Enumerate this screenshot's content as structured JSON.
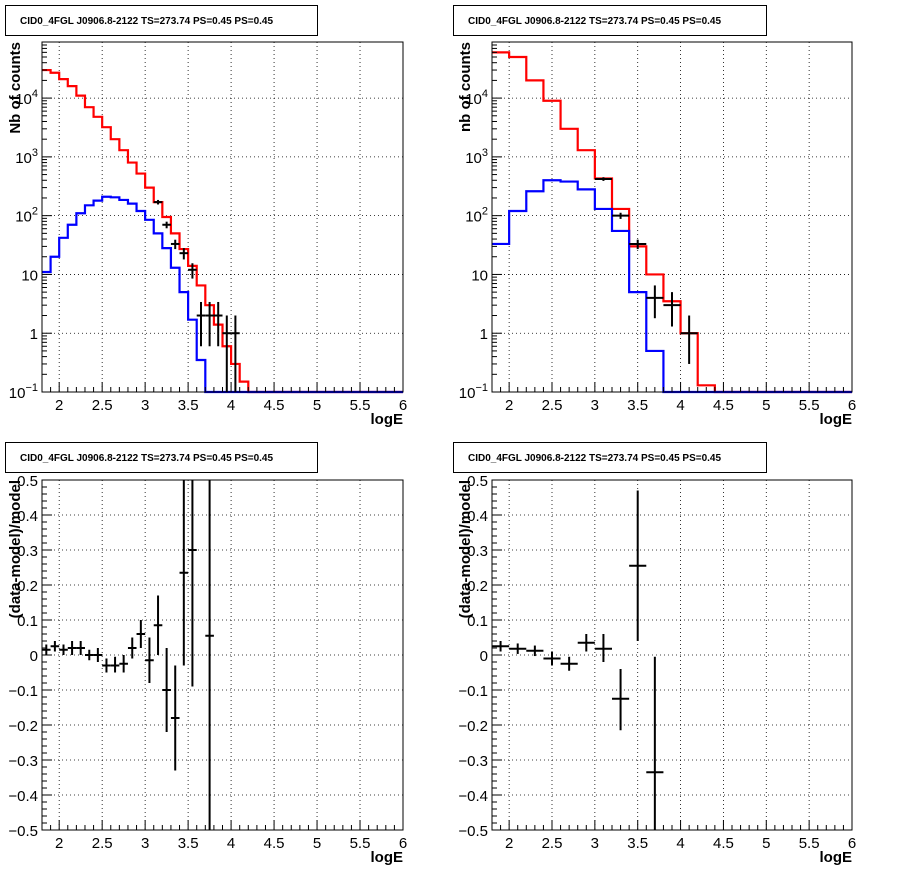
{
  "chart_data": [
    {
      "type": "histogram",
      "title": "CID0_4FGL J0906.8-2122 TS=273.74 PS=0.45 PS=0.45",
      "xlabel": "logE",
      "ylabel": "Nb of counts",
      "xlim": [
        1.8,
        6.0
      ],
      "ylim": [
        0.1,
        90000
      ],
      "yscale": "log",
      "grid": true,
      "xticks": [
        "2",
        "2.5",
        "3",
        "3.5",
        "4",
        "4.5",
        "5",
        "5.5",
        "6"
      ],
      "yticks": [
        {
          "value": 0.1,
          "label": "10",
          "exp": "−1"
        },
        {
          "value": 1,
          "label": "1"
        },
        {
          "value": 10,
          "label": "10"
        },
        {
          "value": 100,
          "label": "10",
          "exp": "2"
        },
        {
          "value": 1000,
          "label": "10",
          "exp": "3"
        },
        {
          "value": 10000,
          "label": "10",
          "exp": "4"
        }
      ],
      "series": [
        {
          "color": "#ff0000",
          "edges": [
            1.8,
            1.9,
            2.0,
            2.1,
            2.2,
            2.3,
            2.4,
            2.5,
            2.6,
            2.7,
            2.8,
            2.9,
            3.0,
            3.1,
            3.2,
            3.3,
            3.4,
            3.5,
            3.6,
            3.7,
            3.8,
            3.9,
            4.0,
            4.1,
            4.2,
            4.3,
            4.4,
            4.5,
            4.6,
            4.7,
            4.8,
            4.9,
            5.0,
            5.1,
            5.2,
            5.3,
            5.4,
            5.5,
            5.6,
            5.7,
            5.8,
            5.9,
            6.0
          ],
          "values": [
            30000,
            27000,
            21000,
            16000,
            11000,
            7000,
            4800,
            3200,
            2000,
            1300,
            800,
            520,
            300,
            170,
            95,
            50,
            27,
            14,
            6.5,
            3,
            1.4,
            0.6,
            0.3,
            0.15,
            0.1,
            0.1,
            0.1,
            0.1,
            0.1,
            0.1,
            0.1,
            0.1,
            0.1,
            0.1,
            0.1,
            0.1,
            0.1,
            0.1,
            0.1,
            0.1,
            0.1,
            0.1
          ]
        },
        {
          "color": "#0000ff",
          "edges": [
            1.8,
            1.9,
            2.0,
            2.1,
            2.2,
            2.3,
            2.4,
            2.5,
            2.6,
            2.7,
            2.8,
            2.9,
            3.0,
            3.1,
            3.2,
            3.3,
            3.4,
            3.5,
            3.6,
            3.7,
            3.8,
            3.9,
            4.0,
            4.1,
            4.2,
            4.3,
            4.4,
            4.5,
            4.6,
            4.7,
            4.8,
            4.9,
            5.0,
            5.1,
            5.2,
            5.3,
            5.4,
            5.5,
            5.6,
            5.7,
            5.8,
            5.9,
            6.0
          ],
          "values": [
            11,
            20,
            42,
            70,
            110,
            150,
            180,
            210,
            205,
            185,
            160,
            120,
            85,
            50,
            28,
            13,
            5,
            1.7,
            0.35,
            0.1,
            0.1,
            0.1,
            0.1,
            0.1,
            0.1,
            0.1,
            0.1,
            0.1,
            0.1,
            0.1,
            0.1,
            0.1,
            0.1,
            0.1,
            0.1,
            0.1,
            0.1,
            0.1,
            0.1,
            0.1,
            0.1,
            0.1
          ]
        }
      ],
      "points": [
        {
          "x": 3.15,
          "xerr": 0.05,
          "y": 170,
          "ylo": 155,
          "yhi": 185
        },
        {
          "x": 3.25,
          "xerr": 0.05,
          "y": 70,
          "ylo": 61,
          "yhi": 79
        },
        {
          "x": 3.35,
          "xerr": 0.05,
          "y": 33,
          "ylo": 27,
          "yhi": 39
        },
        {
          "x": 3.45,
          "xerr": 0.05,
          "y": 23,
          "ylo": 18,
          "yhi": 28
        },
        {
          "x": 3.55,
          "xerr": 0.05,
          "y": 12,
          "ylo": 8.5,
          "yhi": 15.5
        },
        {
          "x": 3.65,
          "xerr": 0.05,
          "y": 2,
          "ylo": 0.6,
          "yhi": 3.4
        },
        {
          "x": 3.75,
          "xerr": 0.05,
          "y": 2,
          "ylo": 0.6,
          "yhi": 3.4
        },
        {
          "x": 3.85,
          "xerr": 0.05,
          "y": 2,
          "ylo": 0.6,
          "yhi": 3.4
        },
        {
          "x": 3.95,
          "xerr": 0.05,
          "y": 1,
          "ylo": 0.1,
          "yhi": 2.0
        },
        {
          "x": 4.05,
          "xerr": 0.05,
          "y": 1,
          "ylo": 0.1,
          "yhi": 2.0
        }
      ]
    },
    {
      "type": "histogram",
      "title": "CID0_4FGL J0906.8-2122 TS=273.74 PS=0.45 PS=0.45",
      "xlabel": "logE",
      "ylabel": "nb of counts",
      "xlim": [
        1.8,
        6.0
      ],
      "ylim": [
        0.1,
        90000
      ],
      "yscale": "log",
      "grid": true,
      "xticks": [
        "2",
        "2.5",
        "3",
        "3.5",
        "4",
        "4.5",
        "5",
        "5.5",
        "6"
      ],
      "yticks": [
        {
          "value": 0.1,
          "label": "10",
          "exp": "−1"
        },
        {
          "value": 1,
          "label": "1"
        },
        {
          "value": 10,
          "label": "10"
        },
        {
          "value": 100,
          "label": "10",
          "exp": "2"
        },
        {
          "value": 1000,
          "label": "10",
          "exp": "3"
        },
        {
          "value": 10000,
          "label": "10",
          "exp": "4"
        }
      ],
      "series": [
        {
          "color": "#ff0000",
          "edges": [
            1.8,
            2.0,
            2.2,
            2.4,
            2.6,
            2.8,
            3.0,
            3.2,
            3.4,
            3.6,
            3.8,
            4.0,
            4.2,
            4.4,
            4.6,
            4.8,
            5.0,
            5.2,
            5.4,
            5.6,
            5.8,
            6.0
          ],
          "values": [
            60000,
            50000,
            20000,
            9000,
            3000,
            1300,
            430,
            130,
            30,
            10,
            3.5,
            1,
            0.13,
            0.1,
            0.1,
            0.1,
            0.1,
            0.1,
            0.1,
            0.1,
            0.1
          ]
        },
        {
          "color": "#0000ff",
          "edges": [
            1.8,
            2.0,
            2.2,
            2.4,
            2.6,
            2.8,
            3.0,
            3.2,
            3.4,
            3.6,
            3.8,
            4.0,
            4.2,
            4.4,
            4.6,
            4.8,
            5.0,
            5.2,
            5.4,
            5.6,
            5.8,
            6.0
          ],
          "values": [
            33,
            120,
            260,
            400,
            380,
            280,
            130,
            55,
            5,
            0.5,
            0.1,
            0.1,
            0.1,
            0.1,
            0.1,
            0.1,
            0.1,
            0.1,
            0.1,
            0.1,
            0.1
          ]
        }
      ],
      "points": [
        {
          "x": 3.1,
          "xerr": 0.1,
          "y": 420,
          "ylo": 390,
          "yhi": 450
        },
        {
          "x": 3.3,
          "xerr": 0.1,
          "y": 100,
          "ylo": 88,
          "yhi": 112
        },
        {
          "x": 3.5,
          "xerr": 0.1,
          "y": 33,
          "ylo": 27,
          "yhi": 39
        },
        {
          "x": 3.7,
          "xerr": 0.1,
          "y": 4,
          "ylo": 1.8,
          "yhi": 6.5
        },
        {
          "x": 3.9,
          "xerr": 0.1,
          "y": 3,
          "ylo": 1.3,
          "yhi": 5
        },
        {
          "x": 4.1,
          "xerr": 0.1,
          "y": 1,
          "ylo": 0.3,
          "yhi": 2
        }
      ]
    },
    {
      "type": "scatter",
      "title": "CID0_4FGL J0906.8-2122 TS=273.74 PS=0.45 PS=0.45",
      "xlabel": "logE",
      "ylabel": "(data-model)/model",
      "xlim": [
        1.8,
        6.0
      ],
      "ylim": [
        -0.5,
        0.5
      ],
      "yscale": "linear",
      "grid": true,
      "xticks": [
        "2",
        "2.5",
        "3",
        "3.5",
        "4",
        "4.5",
        "5",
        "5.5",
        "6"
      ],
      "yticks": [
        {
          "value": 0.5,
          "label": "0.5"
        },
        {
          "value": 0.4,
          "label": "0.4"
        },
        {
          "value": 0.3,
          "label": "0.3"
        },
        {
          "value": 0.2,
          "label": "0.2"
        },
        {
          "value": 0.1,
          "label": "0.1"
        },
        {
          "value": 0,
          "label": "0"
        },
        {
          "value": -0.1,
          "label": "−0.1"
        },
        {
          "value": -0.2,
          "label": "−0.2"
        },
        {
          "value": -0.3,
          "label": "−0.3"
        },
        {
          "value": -0.4,
          "label": "−0.4"
        },
        {
          "value": -0.5,
          "label": "−0.5"
        }
      ],
      "points": [
        {
          "x": 1.85,
          "xerr": 0.05,
          "y": 0.015,
          "ylo": 0.0,
          "yhi": 0.03
        },
        {
          "x": 1.95,
          "xerr": 0.05,
          "y": 0.025,
          "ylo": 0.01,
          "yhi": 0.04
        },
        {
          "x": 2.05,
          "xerr": 0.05,
          "y": 0.015,
          "ylo": 0.0,
          "yhi": 0.03
        },
        {
          "x": 2.15,
          "xerr": 0.05,
          "y": 0.02,
          "ylo": 0.0,
          "yhi": 0.04
        },
        {
          "x": 2.25,
          "xerr": 0.05,
          "y": 0.02,
          "ylo": 0.0,
          "yhi": 0.04
        },
        {
          "x": 2.35,
          "xerr": 0.05,
          "y": 0.0,
          "ylo": -0.015,
          "yhi": 0.015
        },
        {
          "x": 2.45,
          "xerr": 0.05,
          "y": 0.0,
          "ylo": -0.02,
          "yhi": 0.02
        },
        {
          "x": 2.55,
          "xerr": 0.05,
          "y": -0.03,
          "ylo": -0.05,
          "yhi": -0.01
        },
        {
          "x": 2.65,
          "xerr": 0.05,
          "y": -0.03,
          "ylo": -0.05,
          "yhi": -0.005
        },
        {
          "x": 2.75,
          "xerr": 0.05,
          "y": -0.025,
          "ylo": -0.05,
          "yhi": 0.0
        },
        {
          "x": 2.85,
          "xerr": 0.05,
          "y": 0.02,
          "ylo": -0.01,
          "yhi": 0.05
        },
        {
          "x": 2.95,
          "xerr": 0.05,
          "y": 0.06,
          "ylo": 0.02,
          "yhi": 0.1
        },
        {
          "x": 3.05,
          "xerr": 0.05,
          "y": -0.015,
          "ylo": -0.08,
          "yhi": 0.05
        },
        {
          "x": 3.15,
          "xerr": 0.05,
          "y": 0.085,
          "ylo": 0.0,
          "yhi": 0.17
        },
        {
          "x": 3.25,
          "xerr": 0.05,
          "y": -0.1,
          "ylo": -0.22,
          "yhi": 0.02
        },
        {
          "x": 3.35,
          "xerr": 0.05,
          "y": -0.18,
          "ylo": -0.33,
          "yhi": -0.03
        },
        {
          "x": 3.45,
          "xerr": 0.05,
          "y": 0.235,
          "ylo": -0.03,
          "yhi": 0.5
        },
        {
          "x": 3.55,
          "xerr": 0.05,
          "y": 0.3,
          "ylo": -0.09,
          "yhi": 0.5
        },
        {
          "x": 3.75,
          "xerr": 0.05,
          "y": 0.055,
          "ylo": -0.5,
          "yhi": 0.5
        }
      ]
    },
    {
      "type": "scatter",
      "title": "CID0_4FGL J0906.8-2122 TS=273.74 PS=0.45 PS=0.45",
      "xlabel": "logE",
      "ylabel": "(data-model)/model",
      "xlim": [
        1.8,
        6.0
      ],
      "ylim": [
        -0.5,
        0.5
      ],
      "yscale": "linear",
      "grid": true,
      "xticks": [
        "2",
        "2.5",
        "3",
        "3.5",
        "4",
        "4.5",
        "5",
        "5.5",
        "6"
      ],
      "yticks": [
        {
          "value": 0.5,
          "label": "0.5"
        },
        {
          "value": 0.4,
          "label": "0.4"
        },
        {
          "value": 0.3,
          "label": "0.3"
        },
        {
          "value": 0.2,
          "label": "0.2"
        },
        {
          "value": 0.1,
          "label": "0.1"
        },
        {
          "value": 0,
          "label": "0"
        },
        {
          "value": -0.1,
          "label": "−0.1"
        },
        {
          "value": -0.2,
          "label": "−0.2"
        },
        {
          "value": -0.3,
          "label": "−0.3"
        },
        {
          "value": -0.4,
          "label": "−0.4"
        },
        {
          "value": -0.5,
          "label": "−0.5"
        }
      ],
      "points": [
        {
          "x": 1.9,
          "xerr": 0.1,
          "y": 0.025,
          "ylo": 0.01,
          "yhi": 0.04
        },
        {
          "x": 2.1,
          "xerr": 0.1,
          "y": 0.018,
          "ylo": 0.003,
          "yhi": 0.033
        },
        {
          "x": 2.3,
          "xerr": 0.1,
          "y": 0.012,
          "ylo": -0.003,
          "yhi": 0.027
        },
        {
          "x": 2.5,
          "xerr": 0.1,
          "y": -0.01,
          "ylo": -0.03,
          "yhi": 0.01
        },
        {
          "x": 2.7,
          "xerr": 0.1,
          "y": -0.025,
          "ylo": -0.045,
          "yhi": -0.005
        },
        {
          "x": 2.9,
          "xerr": 0.1,
          "y": 0.035,
          "ylo": 0.01,
          "yhi": 0.06
        },
        {
          "x": 3.1,
          "xerr": 0.1,
          "y": 0.018,
          "ylo": -0.02,
          "yhi": 0.06
        },
        {
          "x": 3.3,
          "xerr": 0.1,
          "y": -0.125,
          "ylo": -0.215,
          "yhi": -0.04
        },
        {
          "x": 3.5,
          "xerr": 0.1,
          "y": 0.255,
          "ylo": 0.04,
          "yhi": 0.47
        },
        {
          "x": 3.7,
          "xerr": 0.1,
          "y": -0.335,
          "ylo": -0.5,
          "yhi": -0.005
        }
      ]
    }
  ]
}
